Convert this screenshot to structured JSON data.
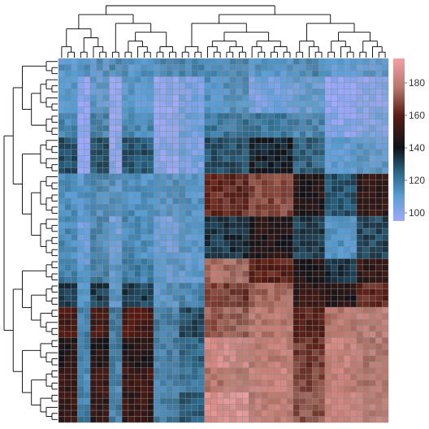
{
  "chart_data": {
    "type": "heatmap",
    "title": "",
    "xlabel": "",
    "ylabel": "",
    "n_rows": 60,
    "n_cols": 52,
    "value_range": [
      95,
      195
    ],
    "colorbar": {
      "ticks": [
        100,
        120,
        140,
        160,
        180
      ],
      "labels": [
        "100",
        "120",
        "140",
        "160",
        "180"
      ]
    },
    "colorscale": [
      {
        "value": 95,
        "color": "#9fa9f9"
      },
      {
        "value": 110,
        "color": "#5a9ed3"
      },
      {
        "value": 125,
        "color": "#2a6585"
      },
      {
        "value": 140,
        "color": "#0f141a"
      },
      {
        "value": 160,
        "color": "#5a1c12"
      },
      {
        "value": 177,
        "color": "#b6776b"
      },
      {
        "value": 195,
        "color": "#f5a0a4"
      }
    ],
    "dendrograms": [
      "rows",
      "columns"
    ],
    "column_groups": [
      {
        "start": 0,
        "end": 3,
        "level": "c1"
      },
      {
        "start": 3,
        "end": 5,
        "level": "c2"
      },
      {
        "start": 5,
        "end": 8,
        "level": "c1"
      },
      {
        "start": 8,
        "end": 10,
        "level": "c2"
      },
      {
        "start": 10,
        "end": 15,
        "level": "c1"
      },
      {
        "start": 15,
        "end": 19,
        "level": "c2"
      },
      {
        "start": 19,
        "end": 23,
        "level": "c3"
      },
      {
        "start": 23,
        "end": 30,
        "level": "c4"
      },
      {
        "start": 30,
        "end": 37,
        "level": "c5"
      },
      {
        "start": 37,
        "end": 42,
        "level": "c6"
      },
      {
        "start": 42,
        "end": 47,
        "level": "c7"
      },
      {
        "start": 47,
        "end": 52,
        "level": "c8"
      }
    ],
    "row_groups": [
      {
        "start": 0,
        "end": 3,
        "level": "r1"
      },
      {
        "start": 3,
        "end": 9,
        "level": "r2"
      },
      {
        "start": 9,
        "end": 13,
        "level": "r3"
      },
      {
        "start": 13,
        "end": 19,
        "level": "r4"
      },
      {
        "start": 19,
        "end": 26,
        "level": "r5"
      },
      {
        "start": 26,
        "end": 33,
        "level": "r6"
      },
      {
        "start": 33,
        "end": 37,
        "level": "r7"
      },
      {
        "start": 37,
        "end": 41,
        "level": "r8"
      },
      {
        "start": 41,
        "end": 46,
        "level": "r9"
      },
      {
        "start": 46,
        "end": 51,
        "level": "r10"
      },
      {
        "start": 51,
        "end": 55,
        "level": "r11"
      },
      {
        "start": 55,
        "end": 60,
        "level": "r12"
      }
    ],
    "level_values": {
      "r1|c1": 112,
      "r1|c2": 114,
      "r1|c3": 116,
      "r1|c4": 114,
      "r1|c5": 112,
      "r1|c6": 115,
      "r1|c7": 110,
      "r1|c8": 110,
      "r2|c1": 110,
      "r2|c2": 98,
      "r2|c3": 104,
      "r2|c4": 113,
      "r2|c5": 104,
      "r2|c6": 108,
      "r2|c7": 97,
      "r2|c8": 100,
      "r3|c1": 116,
      "r3|c2": 98,
      "r3|c3": 106,
      "r3|c4": 120,
      "r3|c5": 120,
      "r3|c6": 116,
      "r3|c7": 100,
      "r3|c8": 102,
      "r4|c1": 128,
      "r4|c2": 99,
      "r4|c3": 104,
      "r4|c4": 128,
      "r4|c5": 138,
      "r4|c6": 125,
      "r4|c7": 108,
      "r4|c8": 110,
      "r5|c1": 114,
      "r5|c2": 112,
      "r5|c3": 112,
      "r5|c4": 162,
      "r5|c5": 168,
      "r5|c6": 145,
      "r5|c7": 128,
      "r5|c8": 150,
      "r6|c1": 115,
      "r6|c2": 106,
      "r6|c3": 110,
      "r6|c4": 134,
      "r6|c5": 145,
      "r6|c6": 132,
      "r6|c7": 112,
      "r6|c8": 130,
      "r7|c1": 118,
      "r7|c2": 110,
      "r7|c3": 110,
      "r7|c4": 175,
      "r7|c5": 160,
      "r7|c6": 145,
      "r7|c7": 135,
      "r7|c8": 150,
      "r8|c1": 132,
      "r8|c2": 112,
      "r8|c3": 116,
      "r8|c4": 166,
      "r8|c5": 174,
      "r8|c6": 150,
      "r8|c7": 145,
      "r8|c8": 162,
      "r9|c1": 155,
      "r9|c2": 118,
      "r9|c3": 130,
      "r9|c4": 172,
      "r9|c5": 178,
      "r9|c6": 160,
      "r9|c7": 178,
      "r9|c8": 180,
      "r10|c1": 145,
      "r10|c2": 118,
      "r10|c3": 125,
      "r10|c4": 185,
      "r10|c5": 180,
      "r10|c6": 165,
      "r10|c7": 182,
      "r10|c8": 178,
      "r11|c1": 152,
      "r11|c2": 116,
      "r11|c3": 120,
      "r11|c4": 178,
      "r11|c5": 182,
      "r11|c6": 168,
      "r11|c7": 180,
      "r11|c8": 178,
      "r12|c1": 150,
      "r12|c2": 118,
      "r12|c3": 126,
      "r12|c4": 188,
      "r12|c5": 180,
      "r12|c6": 170,
      "r12|c7": 182,
      "r12|c8": 180
    }
  }
}
